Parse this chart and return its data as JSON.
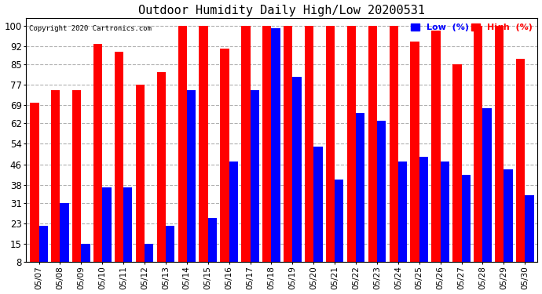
{
  "title": "Outdoor Humidity Daily High/Low 20200531",
  "copyright": "Copyright 2020 Cartronics.com",
  "dates": [
    "05/07",
    "05/08",
    "05/09",
    "05/10",
    "05/11",
    "05/12",
    "05/13",
    "05/14",
    "05/15",
    "05/16",
    "05/17",
    "05/18",
    "05/19",
    "05/20",
    "05/21",
    "05/22",
    "05/23",
    "05/24",
    "05/25",
    "05/26",
    "05/27",
    "05/28",
    "05/29",
    "05/30"
  ],
  "high": [
    70,
    75,
    75,
    93,
    90,
    77,
    82,
    100,
    100,
    91,
    100,
    100,
    100,
    100,
    100,
    100,
    100,
    100,
    94,
    98,
    85,
    100,
    100,
    87
  ],
  "low": [
    22,
    31,
    15,
    37,
    37,
    15,
    22,
    75,
    25,
    47,
    75,
    99,
    80,
    53,
    40,
    66,
    63,
    47,
    49,
    47,
    42,
    68,
    44,
    34
  ],
  "high_color": "#ff0000",
  "low_color": "#0000ff",
  "bg_color": "#ffffff",
  "grid_color": "#b0b0b0",
  "yticks": [
    8,
    15,
    23,
    31,
    38,
    46,
    54,
    62,
    69,
    77,
    85,
    92,
    100
  ],
  "ymin": 8,
  "ymax": 103,
  "title_fontsize": 11,
  "legend_low_label": "Low  (%)",
  "legend_high_label": "High  (%)"
}
